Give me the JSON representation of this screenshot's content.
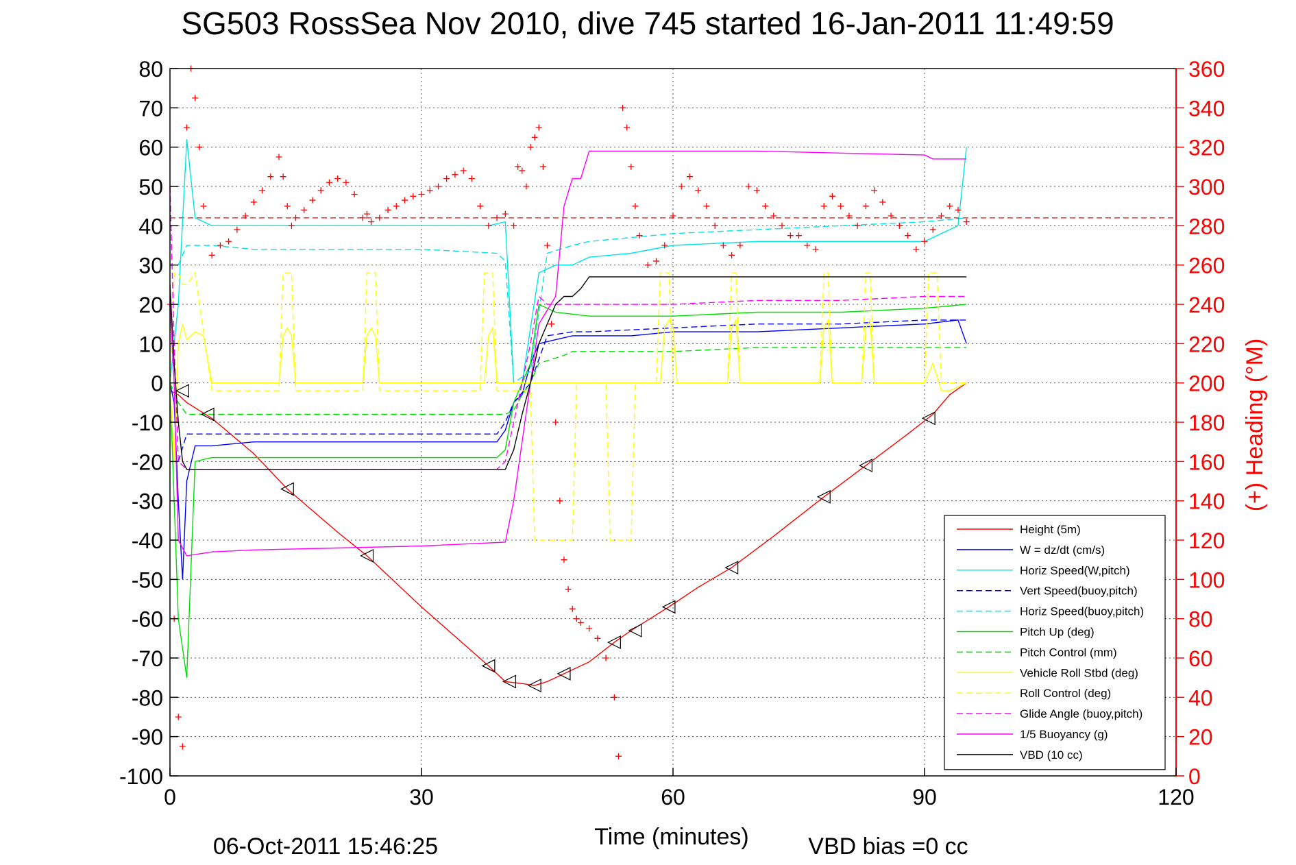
{
  "chart_data": {
    "type": "line",
    "title": "SG503 RossSea Nov 2010, dive 745 started 16-Jan-2011 11:49:59",
    "xlabel": "Time (minutes)",
    "ylabel_right": "(+) Heading (°M)",
    "footer_date": "06-Oct-2011 15:46:25",
    "footer_vbd": "VBD bias =0 cc",
    "xlim": [
      0,
      120
    ],
    "ylim": [
      -100,
      80
    ],
    "ylim_right": [
      0,
      360
    ],
    "x_ticks": [
      0,
      30,
      60,
      90,
      120
    ],
    "y_ticks": [
      80,
      70,
      60,
      50,
      40,
      30,
      20,
      10,
      0,
      -10,
      -20,
      -30,
      -40,
      -50,
      -60,
      -70,
      -80,
      -90,
      -100
    ],
    "y_right_ticks": [
      360,
      340,
      320,
      300,
      280,
      260,
      240,
      220,
      200,
      180,
      160,
      140,
      120,
      100,
      80,
      60,
      40,
      20,
      0
    ],
    "grid": true,
    "legend_position": "bottom-right",
    "heading_reference": 284,
    "series": [
      {
        "name": "Height (5m)",
        "color": "#ff0000",
        "dash": false,
        "x": [
          0,
          1,
          2,
          5,
          10,
          14,
          20,
          23.5,
          30,
          38,
          40,
          42,
          43.5,
          45,
          47,
          50,
          53,
          55,
          59.5,
          63,
          67,
          72,
          78,
          83,
          88,
          91,
          93,
          95
        ],
        "y": [
          -2,
          -3,
          -5,
          -9,
          -18,
          -27,
          -38,
          -44,
          -57,
          -72,
          -76,
          -76.5,
          -77,
          -76,
          -74,
          -71,
          -66,
          -63,
          -57,
          -52,
          -47,
          -39,
          -29,
          -21,
          -13,
          -8,
          -3,
          0
        ]
      },
      {
        "name": "W = dz/dt (cm/s)",
        "color": "#0000ff",
        "dash": false,
        "x": [
          0,
          0.5,
          1,
          1.5,
          2,
          3,
          5,
          10,
          20,
          30,
          39,
          40,
          41,
          42,
          43,
          44,
          46,
          48,
          50,
          55,
          60,
          65,
          70,
          80,
          90,
          94,
          95
        ],
        "y": [
          0,
          -5,
          -30,
          -50,
          -25,
          -16,
          -16,
          -15,
          -15,
          -15,
          -15,
          -12,
          -5,
          -3,
          5,
          10,
          11,
          12,
          12,
          12,
          13,
          13,
          13,
          14,
          15,
          16,
          10
        ]
      },
      {
        "name": "Horiz Speed(W,pitch)",
        "color": "#00e5e5",
        "dash": false,
        "x": [
          0,
          1,
          2,
          3,
          5,
          10,
          20,
          30,
          38,
          40,
          41,
          42,
          44,
          46,
          48,
          50,
          55,
          60,
          70,
          80,
          90,
          94,
          95
        ],
        "y": [
          0,
          20,
          62,
          42,
          40,
          40,
          40,
          40,
          40,
          41,
          0,
          0,
          28,
          30,
          30,
          32,
          33,
          35,
          36,
          36,
          36,
          40,
          60
        ]
      },
      {
        "name": "Vert Speed(buoy,pitch)",
        "color": "#0000ff",
        "dash": true,
        "x": [
          1,
          2,
          5,
          10,
          20,
          30,
          39,
          40,
          41,
          43,
          45,
          48,
          50,
          60,
          70,
          80,
          90,
          95
        ],
        "y": [
          -20,
          -13,
          -13,
          -13,
          -13,
          -13,
          -13,
          -10,
          -5,
          0,
          12,
          13,
          13,
          14,
          15,
          15,
          16,
          16
        ]
      },
      {
        "name": "Horiz Speed(buoy,pitch)",
        "color": "#00e5e5",
        "dash": true,
        "x": [
          1,
          2,
          5,
          10,
          20,
          30,
          39,
          40,
          41,
          43,
          45,
          48,
          50,
          60,
          70,
          80,
          90,
          95
        ],
        "y": [
          30,
          35,
          35,
          34,
          34,
          34,
          33,
          31,
          0,
          3,
          33,
          35,
          36,
          38,
          39,
          40,
          41,
          42
        ]
      },
      {
        "name": "Pitch Up (deg)",
        "color": "#00dd00",
        "dash": false,
        "x": [
          0,
          1,
          2,
          3,
          5,
          10,
          20,
          30,
          39,
          40,
          41,
          42,
          43,
          44,
          46,
          50,
          60,
          70,
          80,
          90,
          95
        ],
        "y": [
          0,
          -60,
          -75,
          -20,
          -19,
          -19,
          -19,
          -19,
          -19,
          -17,
          -5,
          0,
          5,
          20,
          18,
          17,
          17,
          18,
          18,
          19,
          20
        ]
      },
      {
        "name": "Pitch Control (mm)",
        "color": "#00dd00",
        "dash": true,
        "x": [
          0,
          1,
          2,
          5,
          10,
          20,
          30,
          40,
          41,
          42,
          43,
          44,
          47,
          48,
          60,
          70,
          80,
          90,
          95
        ],
        "y": [
          0,
          -5,
          -8,
          -8,
          -8,
          -8,
          -8,
          -8,
          -7,
          -3,
          0,
          5,
          7,
          8,
          8,
          9,
          9,
          9,
          9
        ]
      },
      {
        "name": "Vehicle Roll Stbd (deg)",
        "color": "#ffff00",
        "dash": false,
        "x": [
          0,
          0.5,
          1,
          1.5,
          2,
          3,
          4,
          5,
          13,
          13.5,
          14,
          14.5,
          15,
          23,
          23.5,
          24,
          24.5,
          25,
          37.5,
          38,
          38.5,
          39,
          40,
          42,
          44,
          45,
          58.5,
          59,
          59.5,
          60,
          60.5,
          66.5,
          67,
          67.5,
          68,
          77.5,
          78,
          78.5,
          79,
          82.5,
          83,
          83.5,
          84,
          90,
          91,
          92,
          93,
          95
        ],
        "y": [
          0,
          -20,
          10,
          15,
          11,
          13,
          12,
          0,
          0,
          12,
          14,
          12,
          0,
          0,
          12,
          14,
          12,
          0,
          0,
          12,
          14,
          0,
          0,
          0,
          0,
          0,
          0,
          14,
          16,
          14,
          0,
          0,
          14,
          16,
          0,
          0,
          14,
          16,
          0,
          0,
          14,
          16,
          0,
          0,
          5,
          -2,
          -2,
          0
        ]
      },
      {
        "name": "Roll Control (deg)",
        "color": "#ffff00",
        "dash": true,
        "x": [
          0,
          0.5,
          1,
          1.5,
          2,
          3,
          5,
          13,
          13.5,
          14,
          14.5,
          15,
          23,
          23.5,
          24,
          24.5,
          25,
          37,
          37.5,
          38,
          38.5,
          39,
          40,
          43,
          43.5,
          48,
          48.5,
          52,
          52.5,
          55,
          55.5,
          58,
          58.5,
          59,
          59.5,
          60,
          66.5,
          67,
          67.5,
          68,
          77.5,
          78,
          78.5,
          79,
          82.5,
          83,
          83.5,
          84,
          90,
          90.5,
          91,
          91.5,
          92,
          95
        ],
        "y": [
          0,
          28,
          28,
          25,
          25,
          28,
          -2,
          -2,
          28,
          28,
          28,
          -2,
          -2,
          28,
          28,
          28,
          -2,
          -2,
          28,
          28,
          28,
          -2,
          -2,
          -2,
          -40,
          -40,
          0,
          0,
          -40,
          -40,
          0,
          0,
          28,
          28,
          28,
          0,
          0,
          28,
          28,
          0,
          0,
          28,
          28,
          0,
          0,
          28,
          28,
          0,
          0,
          28,
          28,
          28,
          0,
          0
        ]
      },
      {
        "name": "Glide Angle (buoy,pitch)",
        "color": "#ff00ff",
        "dash": true,
        "x": [
          0,
          0.5,
          1,
          2,
          5,
          10,
          20,
          30,
          39,
          40,
          41,
          42,
          43,
          44,
          45,
          50,
          60,
          70,
          80,
          90,
          95
        ],
        "y": [
          50,
          10,
          -20,
          -22,
          -22,
          -22,
          -22,
          -22,
          -22,
          -20,
          -10,
          0,
          10,
          22,
          20,
          20,
          20,
          21,
          21,
          22,
          22
        ]
      },
      {
        "name": "1/5 Buoyancy (g)",
        "color": "#ff00ff",
        "dash": false,
        "x": [
          0,
          0.5,
          1,
          2,
          5,
          10,
          20,
          30,
          40,
          41,
          42,
          43,
          44,
          46,
          47,
          48,
          49,
          50,
          60,
          70,
          80,
          90,
          91,
          95
        ],
        "y": [
          20,
          0,
          -40,
          -44,
          -43,
          -42.5,
          -42,
          -41.5,
          -40.5,
          -30,
          -15,
          0,
          15,
          22,
          45,
          52,
          52,
          59,
          59,
          59,
          58.5,
          58,
          57,
          57
        ]
      },
      {
        "name": "VBD (10 cc)",
        "color": "#000000",
        "dash": false,
        "x": [
          0,
          0.5,
          1,
          1.5,
          2,
          5,
          10,
          20,
          30,
          40,
          41,
          42,
          43,
          44,
          46,
          47,
          48,
          49,
          50,
          60,
          70,
          80,
          90,
          95
        ],
        "y": [
          25,
          5,
          -10,
          -20,
          -22,
          -22,
          -22,
          -22,
          -22,
          -22,
          -17,
          -8,
          0,
          10,
          20,
          22,
          22,
          24,
          27,
          27,
          27,
          27,
          27,
          27
        ]
      }
    ],
    "heading_points": {
      "x": [
        0,
        0.5,
        1,
        1.5,
        2,
        2.5,
        3,
        3.5,
        4,
        5,
        6,
        7,
        8,
        9,
        10,
        11,
        12,
        13,
        13.5,
        14,
        14.5,
        15,
        16,
        17,
        18,
        19,
        20,
        21,
        22,
        23,
        23.5,
        24,
        25,
        26,
        27,
        28,
        29,
        30,
        31,
        32,
        33,
        34,
        35,
        36,
        37,
        38,
        39,
        40,
        41,
        41.5,
        42,
        42.5,
        43,
        43.5,
        44,
        44.5,
        45,
        45.5,
        46,
        46.5,
        47,
        47.5,
        48,
        48.5,
        49,
        50,
        51,
        52,
        53,
        53.5,
        54,
        54.5,
        55,
        55.5,
        56,
        57,
        58,
        59,
        60,
        61,
        62,
        63,
        64,
        65,
        66,
        67,
        68,
        69,
        70,
        71,
        72,
        73,
        74,
        75,
        76,
        77,
        78,
        79,
        80,
        81,
        82,
        83,
        84,
        85,
        86,
        87,
        88,
        89,
        90,
        91,
        92,
        93,
        94,
        95
      ],
      "y": [
        240,
        80,
        30,
        15,
        330,
        360,
        345,
        320,
        290,
        265,
        270,
        272,
        278,
        285,
        292,
        298,
        305,
        315,
        305,
        290,
        280,
        284,
        288,
        293,
        298,
        302,
        304,
        302,
        296,
        284,
        286,
        282,
        284,
        288,
        290,
        293,
        295,
        296,
        298,
        300,
        304,
        306,
        308,
        304,
        290,
        280,
        284,
        286,
        280,
        310,
        308,
        300,
        320,
        325,
        330,
        310,
        270,
        230,
        180,
        140,
        110,
        95,
        85,
        80,
        78,
        75,
        70,
        60,
        40,
        10,
        340,
        330,
        310,
        290,
        275,
        260,
        262,
        270,
        285,
        300,
        305,
        298,
        290,
        280,
        270,
        265,
        270,
        300,
        298,
        290,
        285,
        280,
        275,
        275,
        270,
        268,
        290,
        295,
        290,
        285,
        280,
        290,
        298,
        292,
        285,
        280,
        275,
        268,
        272,
        278,
        285,
        290,
        288,
        282
      ]
    },
    "triangle_markers": {
      "x": [
        1.5,
        4.5,
        14,
        23.5,
        38,
        40.5,
        43.5,
        47,
        53,
        55.5,
        59.5,
        67,
        78,
        83,
        90.5
      ],
      "y": [
        -2,
        -8,
        -27,
        -44,
        -72,
        -76,
        -77,
        -74,
        -66,
        -63,
        -57,
        -47,
        -29,
        -21,
        -9
      ]
    }
  }
}
